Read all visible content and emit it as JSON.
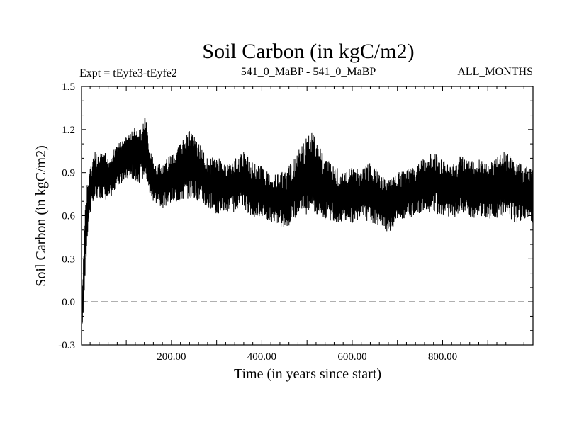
{
  "chart_data": {
    "type": "line",
    "title": "Soil Carbon (in kgC/m2)",
    "subtitle_left": "Expt = tEyfe3-tEyfe2",
    "subtitle_center": "541_0_MaBP - 541_0_MaBP",
    "subtitle_right": "ALL_MONTHS",
    "xlabel": "Time (in years since start)",
    "ylabel": "Soil Carbon (in kgC/m2)",
    "xlim": [
      1,
      1000
    ],
    "ylim": [
      -0.3,
      1.5
    ],
    "x_ticks": [
      200,
      400,
      600,
      800
    ],
    "x_tick_labels": [
      "200.00",
      "400.00",
      "600.00",
      "800.00"
    ],
    "y_ticks": [
      -0.3,
      0.0,
      0.3,
      0.6,
      0.9,
      1.2,
      1.5
    ],
    "y_tick_labels": [
      "-0.3",
      "0.0",
      "0.3",
      "0.6",
      "0.9",
      "1.2",
      "1.5"
    ],
    "reference_line": {
      "y": 0.0,
      "style": "dashed",
      "color": "#808080"
    },
    "grid": false,
    "series": [
      {
        "color": "#000000",
        "envelope": {
          "x": [
            1,
            5,
            10,
            15,
            20,
            30,
            40,
            50,
            60,
            70,
            80,
            90,
            100,
            110,
            120,
            130,
            140,
            145,
            150,
            160,
            170,
            180,
            200,
            220,
            240,
            260,
            280,
            300,
            320,
            340,
            360,
            380,
            400,
            420,
            440,
            455,
            470,
            490,
            510,
            520,
            540,
            560,
            580,
            600,
            620,
            640,
            660,
            680,
            700,
            720,
            740,
            760,
            780,
            800,
            820,
            840,
            860,
            880,
            900,
            920,
            940,
            960,
            980,
            1000
          ],
          "high": [
            -0.1,
            0.3,
            0.7,
            0.88,
            0.95,
            1.05,
            1.02,
            1.06,
            1.0,
            1.05,
            1.1,
            1.12,
            1.15,
            1.18,
            1.22,
            1.2,
            1.3,
            1.25,
            1.08,
            1.0,
            0.97,
            0.95,
            1.05,
            1.1,
            1.2,
            1.12,
            1.0,
            1.02,
            0.95,
            1.0,
            1.05,
            0.98,
            0.95,
            0.88,
            0.9,
            0.92,
            1.0,
            1.1,
            1.2,
            1.15,
            1.0,
            0.95,
            0.9,
            0.95,
            0.92,
            0.98,
            0.9,
            0.85,
            0.9,
            0.92,
            0.96,
            1.0,
            1.06,
            1.0,
            0.95,
            1.02,
            0.98,
            1.0,
            0.96,
            1.02,
            1.05,
            0.98,
            0.95,
            0.92
          ],
          "low": [
            -0.22,
            -0.1,
            0.2,
            0.5,
            0.6,
            0.7,
            0.72,
            0.72,
            0.7,
            0.75,
            0.8,
            0.82,
            0.85,
            0.85,
            0.85,
            0.82,
            0.88,
            0.85,
            0.75,
            0.7,
            0.68,
            0.65,
            0.68,
            0.7,
            0.72,
            0.7,
            0.65,
            0.6,
            0.63,
            0.62,
            0.65,
            0.58,
            0.6,
            0.55,
            0.52,
            0.5,
            0.58,
            0.6,
            0.62,
            0.6,
            0.57,
            0.55,
            0.56,
            0.55,
            0.58,
            0.55,
            0.53,
            0.48,
            0.55,
            0.58,
            0.6,
            0.62,
            0.62,
            0.6,
            0.58,
            0.6,
            0.57,
            0.6,
            0.58,
            0.58,
            0.6,
            0.55,
            0.57,
            0.55
          ]
        }
      }
    ]
  }
}
